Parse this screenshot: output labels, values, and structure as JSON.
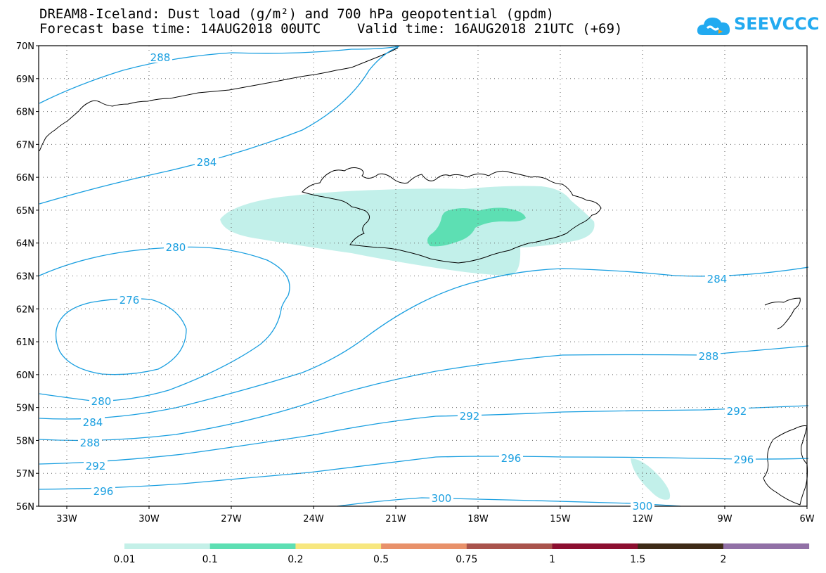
{
  "header": {
    "title": "DREAM8-Iceland: Dust load (g/m²) and 700 hPa geopotential (gpdm)",
    "base_time": "Forecast base time: 14AUG2018 00UTC",
    "valid_time": "Valid time: 16AUG2018 21UTC (+69)"
  },
  "logo": {
    "text": "SEEVCCC"
  },
  "map": {
    "lat_labels": [
      "70N",
      "69N",
      "68N",
      "67N",
      "66N",
      "65N",
      "64N",
      "63N",
      "62N",
      "61N",
      "60N",
      "59N",
      "58N",
      "57N",
      "56N"
    ],
    "lon_labels": [
      "33W",
      "30W",
      "27W",
      "24W",
      "21W",
      "18W",
      "15W",
      "12W",
      "9W",
      "6W"
    ],
    "contour_labels": [
      {
        "id": "c288a",
        "text": "288"
      },
      {
        "id": "c284a",
        "text": "284"
      },
      {
        "id": "c280a",
        "text": "280"
      },
      {
        "id": "c276",
        "text": "276"
      },
      {
        "id": "c284b",
        "text": "284"
      },
      {
        "id": "c288b",
        "text": "288"
      },
      {
        "id": "c280b",
        "text": "280"
      },
      {
        "id": "c284c",
        "text": "284"
      },
      {
        "id": "c288c",
        "text": "288"
      },
      {
        "id": "c292a",
        "text": "292"
      },
      {
        "id": "c292b",
        "text": "292"
      },
      {
        "id": "c292c",
        "text": "292"
      },
      {
        "id": "c296a",
        "text": "296"
      },
      {
        "id": "c296b",
        "text": "296"
      },
      {
        "id": "c296c",
        "text": "296"
      },
      {
        "id": "c300a",
        "text": "300"
      },
      {
        "id": "c300b",
        "text": "300"
      }
    ],
    "contour_color": "#1a9fe0",
    "dust_light_color": "#c2f0ea",
    "dust_mid_color": "#5ddfb3"
  },
  "colorbar": {
    "labels": [
      "0.01",
      "0.1",
      "0.2",
      "0.5",
      "0.75",
      "1",
      "1.5",
      "2"
    ],
    "colors": [
      "#c4f0e8",
      "#5ddfb3",
      "#f7e77f",
      "#e8916a",
      "#a9534c",
      "#8c0f30",
      "#3e2a17",
      "#9170a6"
    ]
  }
}
